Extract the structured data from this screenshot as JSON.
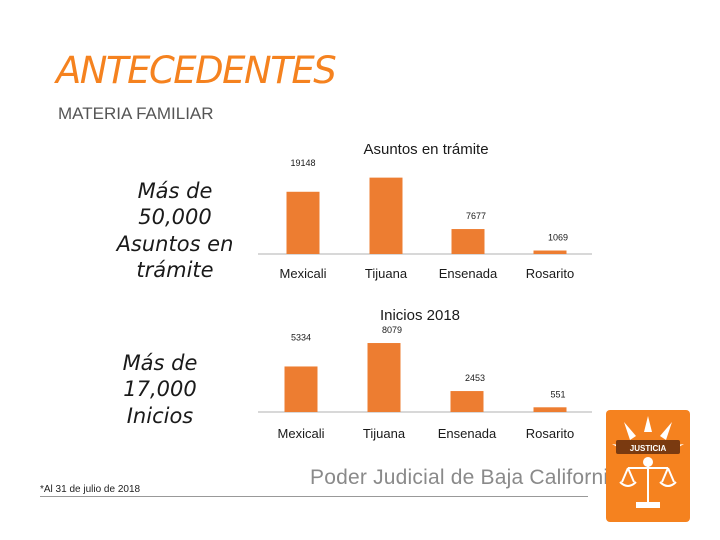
{
  "slide": {
    "title": "ANTECEDENTES",
    "subtitle": "MATERIA FAMILIAR",
    "callout_1": "Más de 50,000 Asuntos en trámite",
    "callout_2": "Más de 17,000 Inicios",
    "footnote": "*Al 31 de julio de 2018",
    "footer": "Poder Judicial de Baja California",
    "logo_text": "JUSTICIA"
  },
  "colors": {
    "accent": "#f5821f",
    "bar": "#ed7d31",
    "text": "#1a1a1a"
  },
  "chart_data": [
    {
      "type": "bar",
      "title": "Asuntos en trámite",
      "categories": [
        "Mexicali",
        "Tijuana",
        "Ensenada",
        "Rosarito"
      ],
      "values": [
        19148,
        23500,
        7677,
        1069
      ],
      "value_labels": [
        "19148",
        "",
        "7677",
        "1069"
      ],
      "ylim": [
        0,
        24000
      ],
      "grid": false,
      "legend": "none"
    },
    {
      "type": "bar",
      "title": "Inicios 2018",
      "categories": [
        "Mexicali",
        "Tijuana",
        "Ensenada",
        "Rosarito"
      ],
      "values": [
        5334,
        8079,
        2453,
        551
      ],
      "value_labels": [
        "5334",
        "8079",
        "2453",
        "551"
      ],
      "ylim": [
        0,
        8200
      ],
      "grid": false,
      "legend": "none"
    }
  ]
}
